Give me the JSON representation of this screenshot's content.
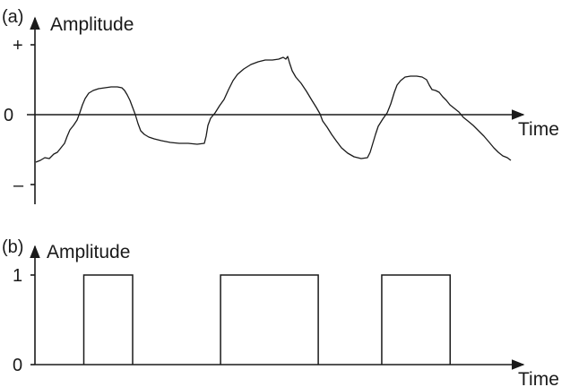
{
  "panel_a": {
    "panel_label": "(a)",
    "y_axis_label": "Amplitude",
    "x_axis_label": "Time",
    "tick_plus": "+",
    "tick_zero": "0",
    "tick_minus": "–"
  },
  "panel_b": {
    "panel_label": "(b)",
    "y_axis_label": "Amplitude",
    "x_axis_label": "Time",
    "tick_one": "1",
    "tick_zero": "0",
    "pulses": [
      {
        "start": 0.1,
        "end": 0.2
      },
      {
        "start": 0.38,
        "end": 0.58
      },
      {
        "start": 0.71,
        "end": 0.85
      }
    ]
  }
}
